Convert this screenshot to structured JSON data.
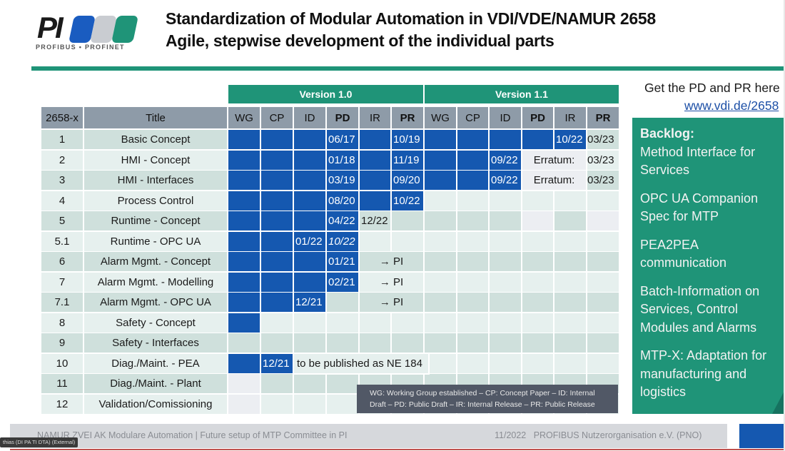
{
  "logo": {
    "text": "PI",
    "subtitle": "PROFIBUS • PROFINET",
    "block_colors": [
      "#1a5cc0",
      "#c9ccd1",
      "#1f9478"
    ]
  },
  "header": {
    "title_line1": "Standardization of Modular Automation in VDI/VDE/NAMUR 2658",
    "title_line2": "Agile, stepwise development of the individual parts"
  },
  "colors": {
    "brand_green": "#1f9478",
    "cell_blue": "#1558b0",
    "header_gray": "#8e9ba8",
    "row_dark": "#cfe0dc",
    "row_light": "#e6f0ee"
  },
  "table": {
    "version_groups": [
      {
        "label": "Version 1.0"
      },
      {
        "label": "Version 1.1"
      }
    ],
    "columns": [
      "2658-x",
      "Title",
      "WG",
      "CP",
      "ID",
      "PD",
      "IR",
      "PR",
      "WG",
      "CP",
      "ID",
      "PD",
      "IR",
      "PR"
    ],
    "rows": [
      {
        "num": "1",
        "title": "Basic Concept",
        "cells": [
          "",
          "",
          "",
          "06/17",
          "",
          "10/19",
          "",
          "",
          "",
          "",
          "10/22",
          "03/23"
        ]
      },
      {
        "num": "2",
        "title": "HMI - Concept",
        "cells": [
          "",
          "",
          "",
          "01/18",
          "",
          "11/19",
          "",
          "",
          "09/22",
          "Erratum:",
          "",
          "03/23"
        ]
      },
      {
        "num": "3",
        "title": "HMI - Interfaces",
        "cells": [
          "",
          "",
          "",
          "03/19",
          "",
          "09/20",
          "",
          "",
          "09/22",
          "Erratum:",
          "",
          "03/23"
        ]
      },
      {
        "num": "4",
        "title": "Process Control",
        "cells": [
          "",
          "",
          "",
          "08/20",
          "",
          "10/22",
          "",
          "",
          "",
          "",
          "",
          ""
        ]
      },
      {
        "num": "5",
        "title": "Runtime - Concept",
        "cells": [
          "",
          "",
          "",
          "04/22",
          "12/22",
          "",
          "",
          "",
          "",
          "",
          "",
          ""
        ]
      },
      {
        "num": "5.1",
        "title": "Runtime - OPC UA",
        "cells": [
          "",
          "",
          "01/22",
          "10/22",
          "",
          "",
          "",
          "",
          "",
          "",
          "",
          ""
        ]
      },
      {
        "num": "6",
        "title": "Alarm Mgmt. - Concept",
        "cells": [
          "",
          "",
          "",
          "01/21",
          "→  PI",
          "",
          "",
          "",
          "",
          "",
          "",
          ""
        ]
      },
      {
        "num": "7",
        "title": "Alarm Mgmt. - Modelling",
        "cells": [
          "",
          "",
          "",
          "02/21",
          "→  PI",
          "",
          "",
          "",
          "",
          "",
          "",
          ""
        ]
      },
      {
        "num": "7.1",
        "title": "Alarm Mgmt. - OPC UA",
        "cells": [
          "",
          "",
          "12/21",
          "",
          "→  PI",
          "",
          "",
          "",
          "",
          "",
          "",
          ""
        ]
      },
      {
        "num": "8",
        "title": "Safety - Concept",
        "cells": [
          "",
          "",
          "",
          "",
          "",
          "",
          "",
          "",
          "",
          "",
          "",
          ""
        ]
      },
      {
        "num": "9",
        "title": "Safety - Interfaces",
        "cells": [
          "",
          "",
          "",
          "",
          "",
          "",
          "",
          "",
          "",
          "",
          "",
          ""
        ]
      },
      {
        "num": "10",
        "title": "Diag./Maint. - PEA",
        "cells": [
          "",
          "12/21",
          "to be published as NE 184",
          "",
          "",
          "",
          "",
          "",
          "",
          "",
          "",
          ""
        ]
      },
      {
        "num": "11",
        "title": "Diag./Maint. - Plant",
        "cells": [
          "",
          "",
          "",
          "",
          "",
          "",
          "",
          "",
          "",
          "",
          "",
          ""
        ]
      },
      {
        "num": "12",
        "title": "Validation/Comissioning",
        "cells": [
          "",
          "",
          "",
          "",
          "",
          "",
          "",
          "",
          "",
          "",
          "",
          ""
        ]
      }
    ]
  },
  "legend": {
    "line1": "WG: Working Group established  –  CP: Concept Paper  –  ID: Internal",
    "line2": "Draft  –  PD: Public Draft  –  IR: Internal Release  –  PR: Public Release"
  },
  "sidebar": {
    "get_text": "Get the PD and PR here",
    "link": "www.vdi.de/2658",
    "backlog_heading": "Backlog:",
    "backlog_items": [
      "Method Interface for Services",
      "OPC UA Companion Spec for MTP",
      "PEA2PEA communication",
      "Batch-Information on Services, Control Modules and Alarms",
      "MTP-X: Adaptation for manufacturing and logistics"
    ]
  },
  "footer": {
    "left": "NAMUR ZVEI AK Modulare Automation | Future setup of MTP Committee in PI",
    "date": "11/2022",
    "org": "PROFIBUS Nutzerorganisation e.V. (PNO)",
    "participant_badge": "thias (DI PA TI DTA) (External)"
  }
}
